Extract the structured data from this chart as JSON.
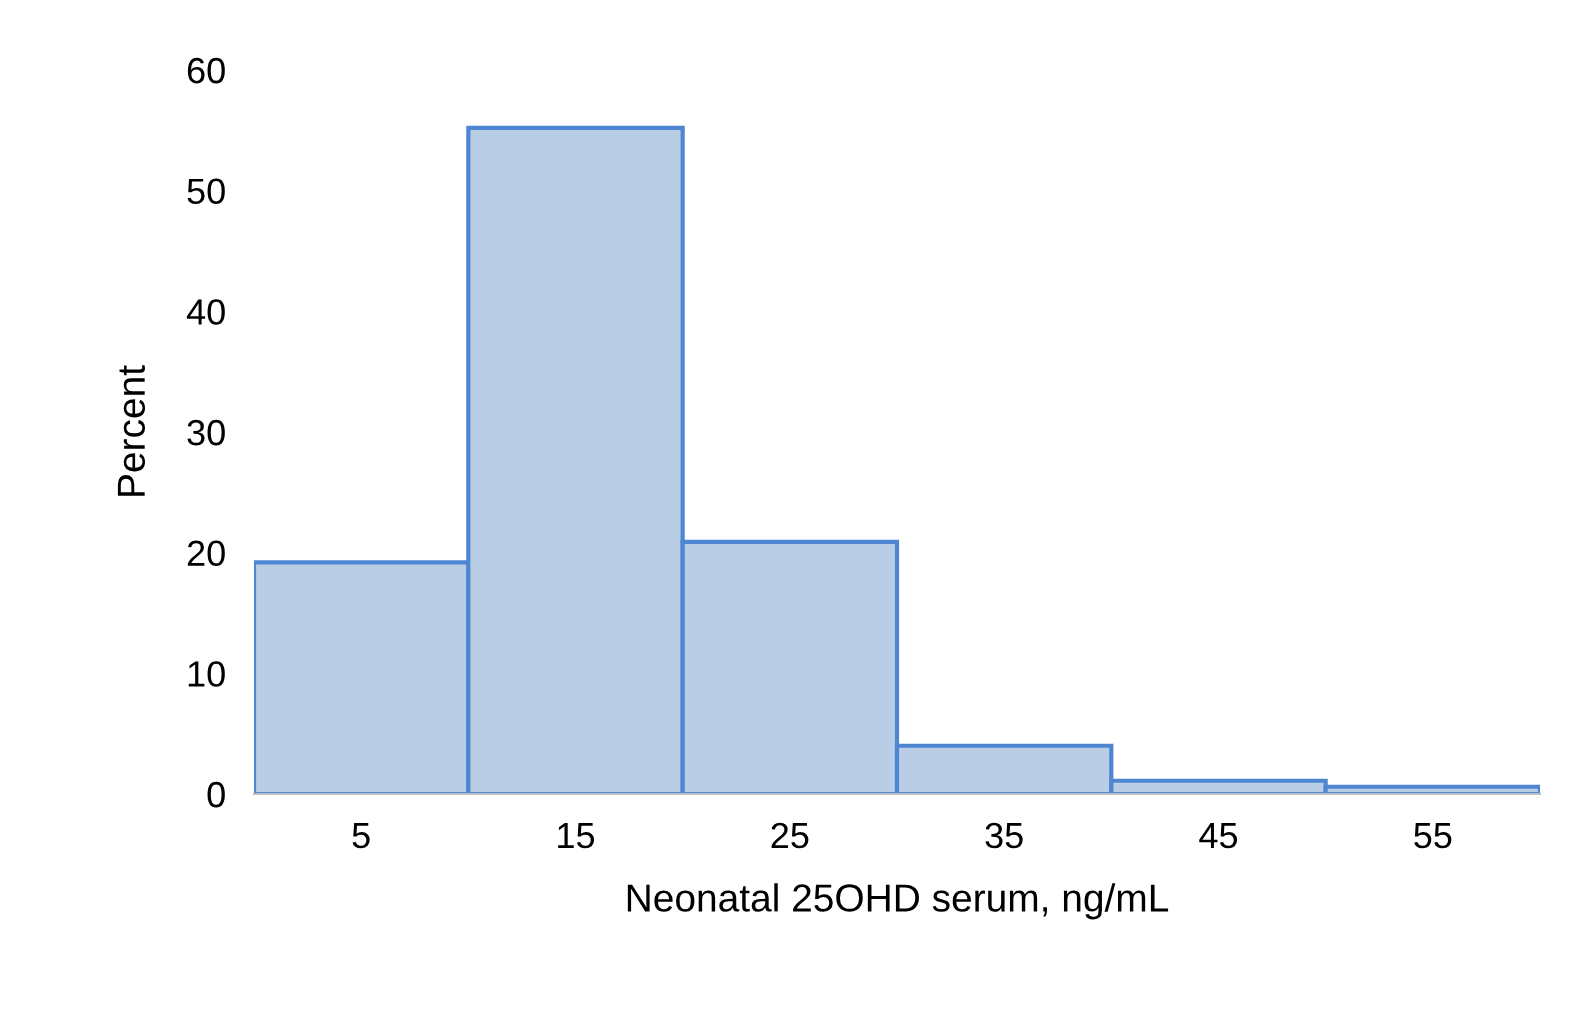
{
  "chart_data": {
    "type": "histogram",
    "xlabel": "Neonatal 25OHD serum, ng/mL",
    "ylabel": "Percent",
    "bins": [
      0,
      10,
      20,
      30,
      40,
      50,
      60
    ],
    "values": [
      19.2,
      55.2,
      20.9,
      4.0,
      1.1,
      0.6
    ],
    "color": "#b9cde5",
    "xlim": [
      0,
      60
    ],
    "xticks": [
      5,
      15,
      25,
      35,
      45,
      55
    ],
    "ylim": [
      0,
      60
    ],
    "yticks": [
      0,
      10,
      20,
      30,
      40,
      50,
      60
    ],
    "grid": false,
    "legend": false
  }
}
